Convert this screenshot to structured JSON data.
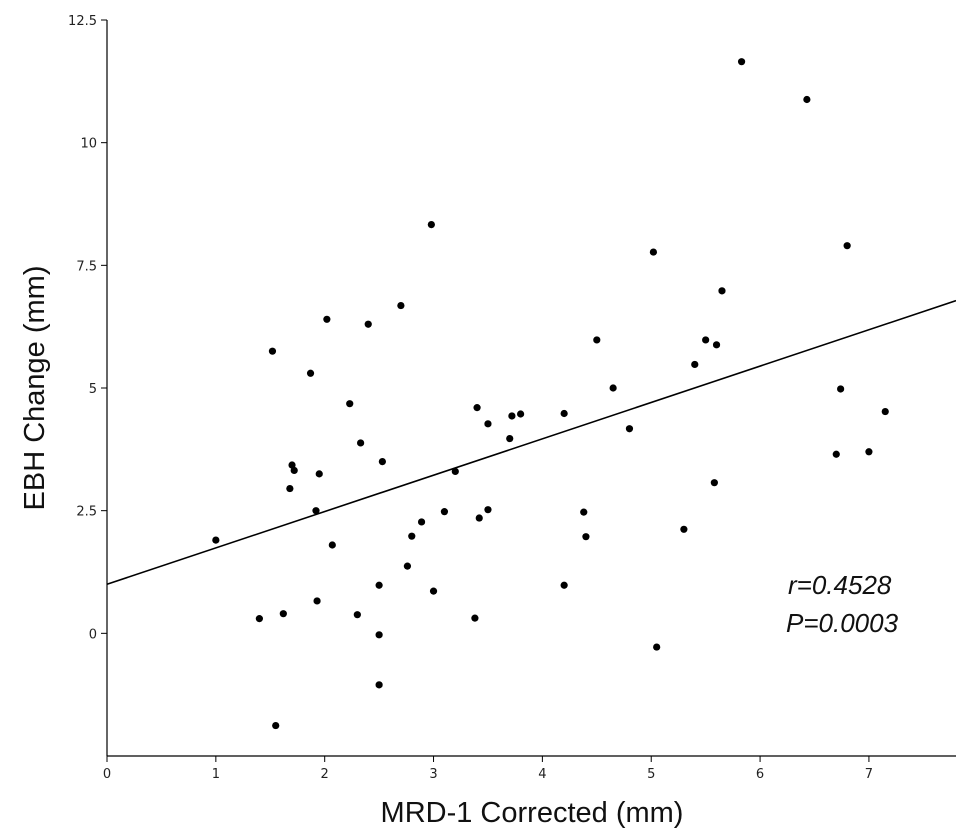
{
  "chart_data": {
    "type": "scatter",
    "title": "",
    "xlabel": "MRD-1 Corrected (mm)",
    "ylabel": "EBH Change (mm)",
    "xlim": [
      0,
      7.8
    ],
    "ylim": [
      -2.5,
      12.5
    ],
    "x_ticks": [
      0,
      1,
      2,
      3,
      4,
      5,
      6,
      7
    ],
    "x_tick_labels": [
      "0",
      "1",
      "2",
      "3",
      "4",
      "5",
      "6",
      "7"
    ],
    "y_ticks": [
      0,
      2.5,
      5,
      7.5,
      10,
      12.5
    ],
    "y_tick_labels": [
      "0",
      "2.5",
      "5",
      "7.5",
      "10",
      "12.5"
    ],
    "grid": false,
    "marker_color": "#000000",
    "line_color": "#000000",
    "fit_line": {
      "x": [
        0,
        7.8
      ],
      "y": [
        1.0,
        6.78
      ]
    },
    "annotations": [
      "r=0.4528",
      "P=0.0003"
    ],
    "points": [
      {
        "x": 1.0,
        "y": 1.9
      },
      {
        "x": 1.4,
        "y": 0.3
      },
      {
        "x": 1.52,
        "y": 5.75
      },
      {
        "x": 1.55,
        "y": -1.88
      },
      {
        "x": 1.62,
        "y": 0.4
      },
      {
        "x": 1.68,
        "y": 2.95
      },
      {
        "x": 1.7,
        "y": 3.43
      },
      {
        "x": 1.72,
        "y": 3.32
      },
      {
        "x": 1.87,
        "y": 5.3
      },
      {
        "x": 1.92,
        "y": 2.5
      },
      {
        "x": 1.93,
        "y": 0.66
      },
      {
        "x": 1.95,
        "y": 3.25
      },
      {
        "x": 2.02,
        "y": 6.4
      },
      {
        "x": 2.07,
        "y": 1.8
      },
      {
        "x": 2.23,
        "y": 4.68
      },
      {
        "x": 2.3,
        "y": 0.38
      },
      {
        "x": 2.33,
        "y": 3.88
      },
      {
        "x": 2.4,
        "y": 6.3
      },
      {
        "x": 2.5,
        "y": 0.98
      },
      {
        "x": 2.5,
        "y": -0.03
      },
      {
        "x": 2.5,
        "y": -1.05
      },
      {
        "x": 2.53,
        "y": 3.5
      },
      {
        "x": 2.7,
        "y": 6.68
      },
      {
        "x": 2.76,
        "y": 1.37
      },
      {
        "x": 2.8,
        "y": 1.98
      },
      {
        "x": 2.89,
        "y": 2.27
      },
      {
        "x": 2.98,
        "y": 8.33
      },
      {
        "x": 3.0,
        "y": 0.86
      },
      {
        "x": 3.1,
        "y": 2.48
      },
      {
        "x": 3.2,
        "y": 3.3
      },
      {
        "x": 3.38,
        "y": 0.31
      },
      {
        "x": 3.4,
        "y": 4.6
      },
      {
        "x": 3.42,
        "y": 2.35
      },
      {
        "x": 3.5,
        "y": 4.27
      },
      {
        "x": 3.5,
        "y": 2.52
      },
      {
        "x": 3.7,
        "y": 3.97
      },
      {
        "x": 3.72,
        "y": 4.43
      },
      {
        "x": 3.8,
        "y": 4.47
      },
      {
        "x": 4.2,
        "y": 0.98
      },
      {
        "x": 4.2,
        "y": 4.48
      },
      {
        "x": 4.38,
        "y": 2.47
      },
      {
        "x": 4.4,
        "y": 1.97
      },
      {
        "x": 4.5,
        "y": 5.98
      },
      {
        "x": 4.65,
        "y": 5.0
      },
      {
        "x": 4.8,
        "y": 4.17
      },
      {
        "x": 5.02,
        "y": 7.77
      },
      {
        "x": 5.05,
        "y": -0.28
      },
      {
        "x": 5.3,
        "y": 2.12
      },
      {
        "x": 5.4,
        "y": 5.48
      },
      {
        "x": 5.5,
        "y": 5.98
      },
      {
        "x": 5.58,
        "y": 3.07
      },
      {
        "x": 5.6,
        "y": 5.88
      },
      {
        "x": 5.65,
        "y": 6.98
      },
      {
        "x": 5.83,
        "y": 11.65
      },
      {
        "x": 6.43,
        "y": 10.88
      },
      {
        "x": 6.7,
        "y": 3.65
      },
      {
        "x": 6.74,
        "y": 4.98
      },
      {
        "x": 6.8,
        "y": 7.9
      },
      {
        "x": 7.0,
        "y": 3.7
      },
      {
        "x": 7.15,
        "y": 4.52
      }
    ]
  }
}
